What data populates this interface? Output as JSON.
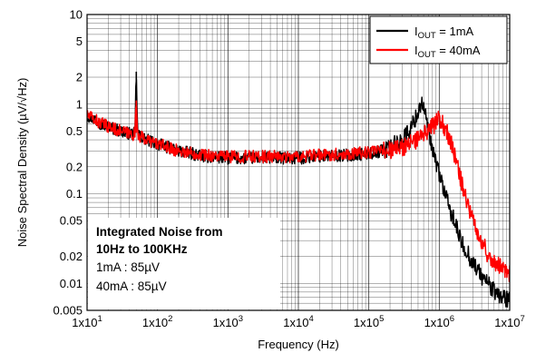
{
  "chart_data": {
    "type": "line",
    "xlabel": "Frequency (Hz)",
    "ylabel": "Noise Spectral Density (µV/√Hz)",
    "xscale": "log",
    "yscale": "log",
    "xlim": [
      10,
      10000000
    ],
    "ylim": [
      0.005,
      10
    ],
    "grid": true,
    "legend_position": "top-right",
    "x_tick_labels": [
      "1x10",
      "1x10",
      "1x10",
      "1x10",
      "1x10",
      "1x10",
      "1x10"
    ],
    "x_tick_exponents": [
      "1",
      "2",
      "3",
      "4",
      "5",
      "6",
      "7"
    ],
    "y_tick_labels": [
      "0.005",
      "0.01",
      "0.02",
      "0.05",
      "0.1",
      "0.2",
      "0.5",
      "1",
      "2",
      "5",
      "10"
    ],
    "legend": [
      {
        "prefix": "I",
        "sub": "OUT",
        "suffix": " = 1mA"
      },
      {
        "prefix": "I",
        "sub": "OUT",
        "suffix": " = 40mA"
      }
    ],
    "annotation": {
      "line1": "Integrated Noise from",
      "line2": "10Hz to 100KHz",
      "line3": "1mA : 85µV",
      "line4": "40mA : 85µV"
    },
    "series": [
      {
        "color": "#000000",
        "x": [
          10,
          12,
          15,
          20,
          30,
          45,
          48,
          50,
          52,
          55,
          70,
          100,
          200,
          500,
          1000,
          2000,
          5000,
          10000,
          20000,
          50000,
          100000,
          150000,
          200000,
          300000,
          400000,
          500000,
          560000,
          600000,
          700000,
          800000,
          1000000,
          1300000,
          1700000,
          2000000,
          2500000,
          3000000,
          4000000,
          5000000,
          6000000,
          8000000,
          10000000
        ],
        "y": [
          0.75,
          0.7,
          0.62,
          0.56,
          0.5,
          0.46,
          0.48,
          2.3,
          0.5,
          0.44,
          0.4,
          0.36,
          0.3,
          0.26,
          0.25,
          0.25,
          0.25,
          0.25,
          0.26,
          0.27,
          0.28,
          0.3,
          0.33,
          0.4,
          0.55,
          0.8,
          1.1,
          0.9,
          0.5,
          0.3,
          0.17,
          0.08,
          0.045,
          0.03,
          0.022,
          0.017,
          0.012,
          0.01,
          0.008,
          0.007,
          0.0065
        ]
      },
      {
        "color": "#ff0000",
        "x": [
          10,
          12,
          15,
          20,
          30,
          45,
          48,
          50,
          52,
          55,
          70,
          100,
          200,
          500,
          1000,
          2000,
          5000,
          10000,
          20000,
          50000,
          100000,
          200000,
          300000,
          500000,
          700000,
          900000,
          1000000,
          1200000,
          1500000,
          2000000,
          3000000,
          4000000,
          5000000,
          7000000,
          10000000
        ],
        "y": [
          0.75,
          0.7,
          0.62,
          0.56,
          0.5,
          0.46,
          0.48,
          1.1,
          0.5,
          0.44,
          0.4,
          0.36,
          0.3,
          0.27,
          0.26,
          0.26,
          0.26,
          0.26,
          0.27,
          0.28,
          0.29,
          0.31,
          0.33,
          0.4,
          0.5,
          0.62,
          0.68,
          0.55,
          0.35,
          0.15,
          0.05,
          0.03,
          0.02,
          0.016,
          0.013
        ]
      }
    ]
  }
}
